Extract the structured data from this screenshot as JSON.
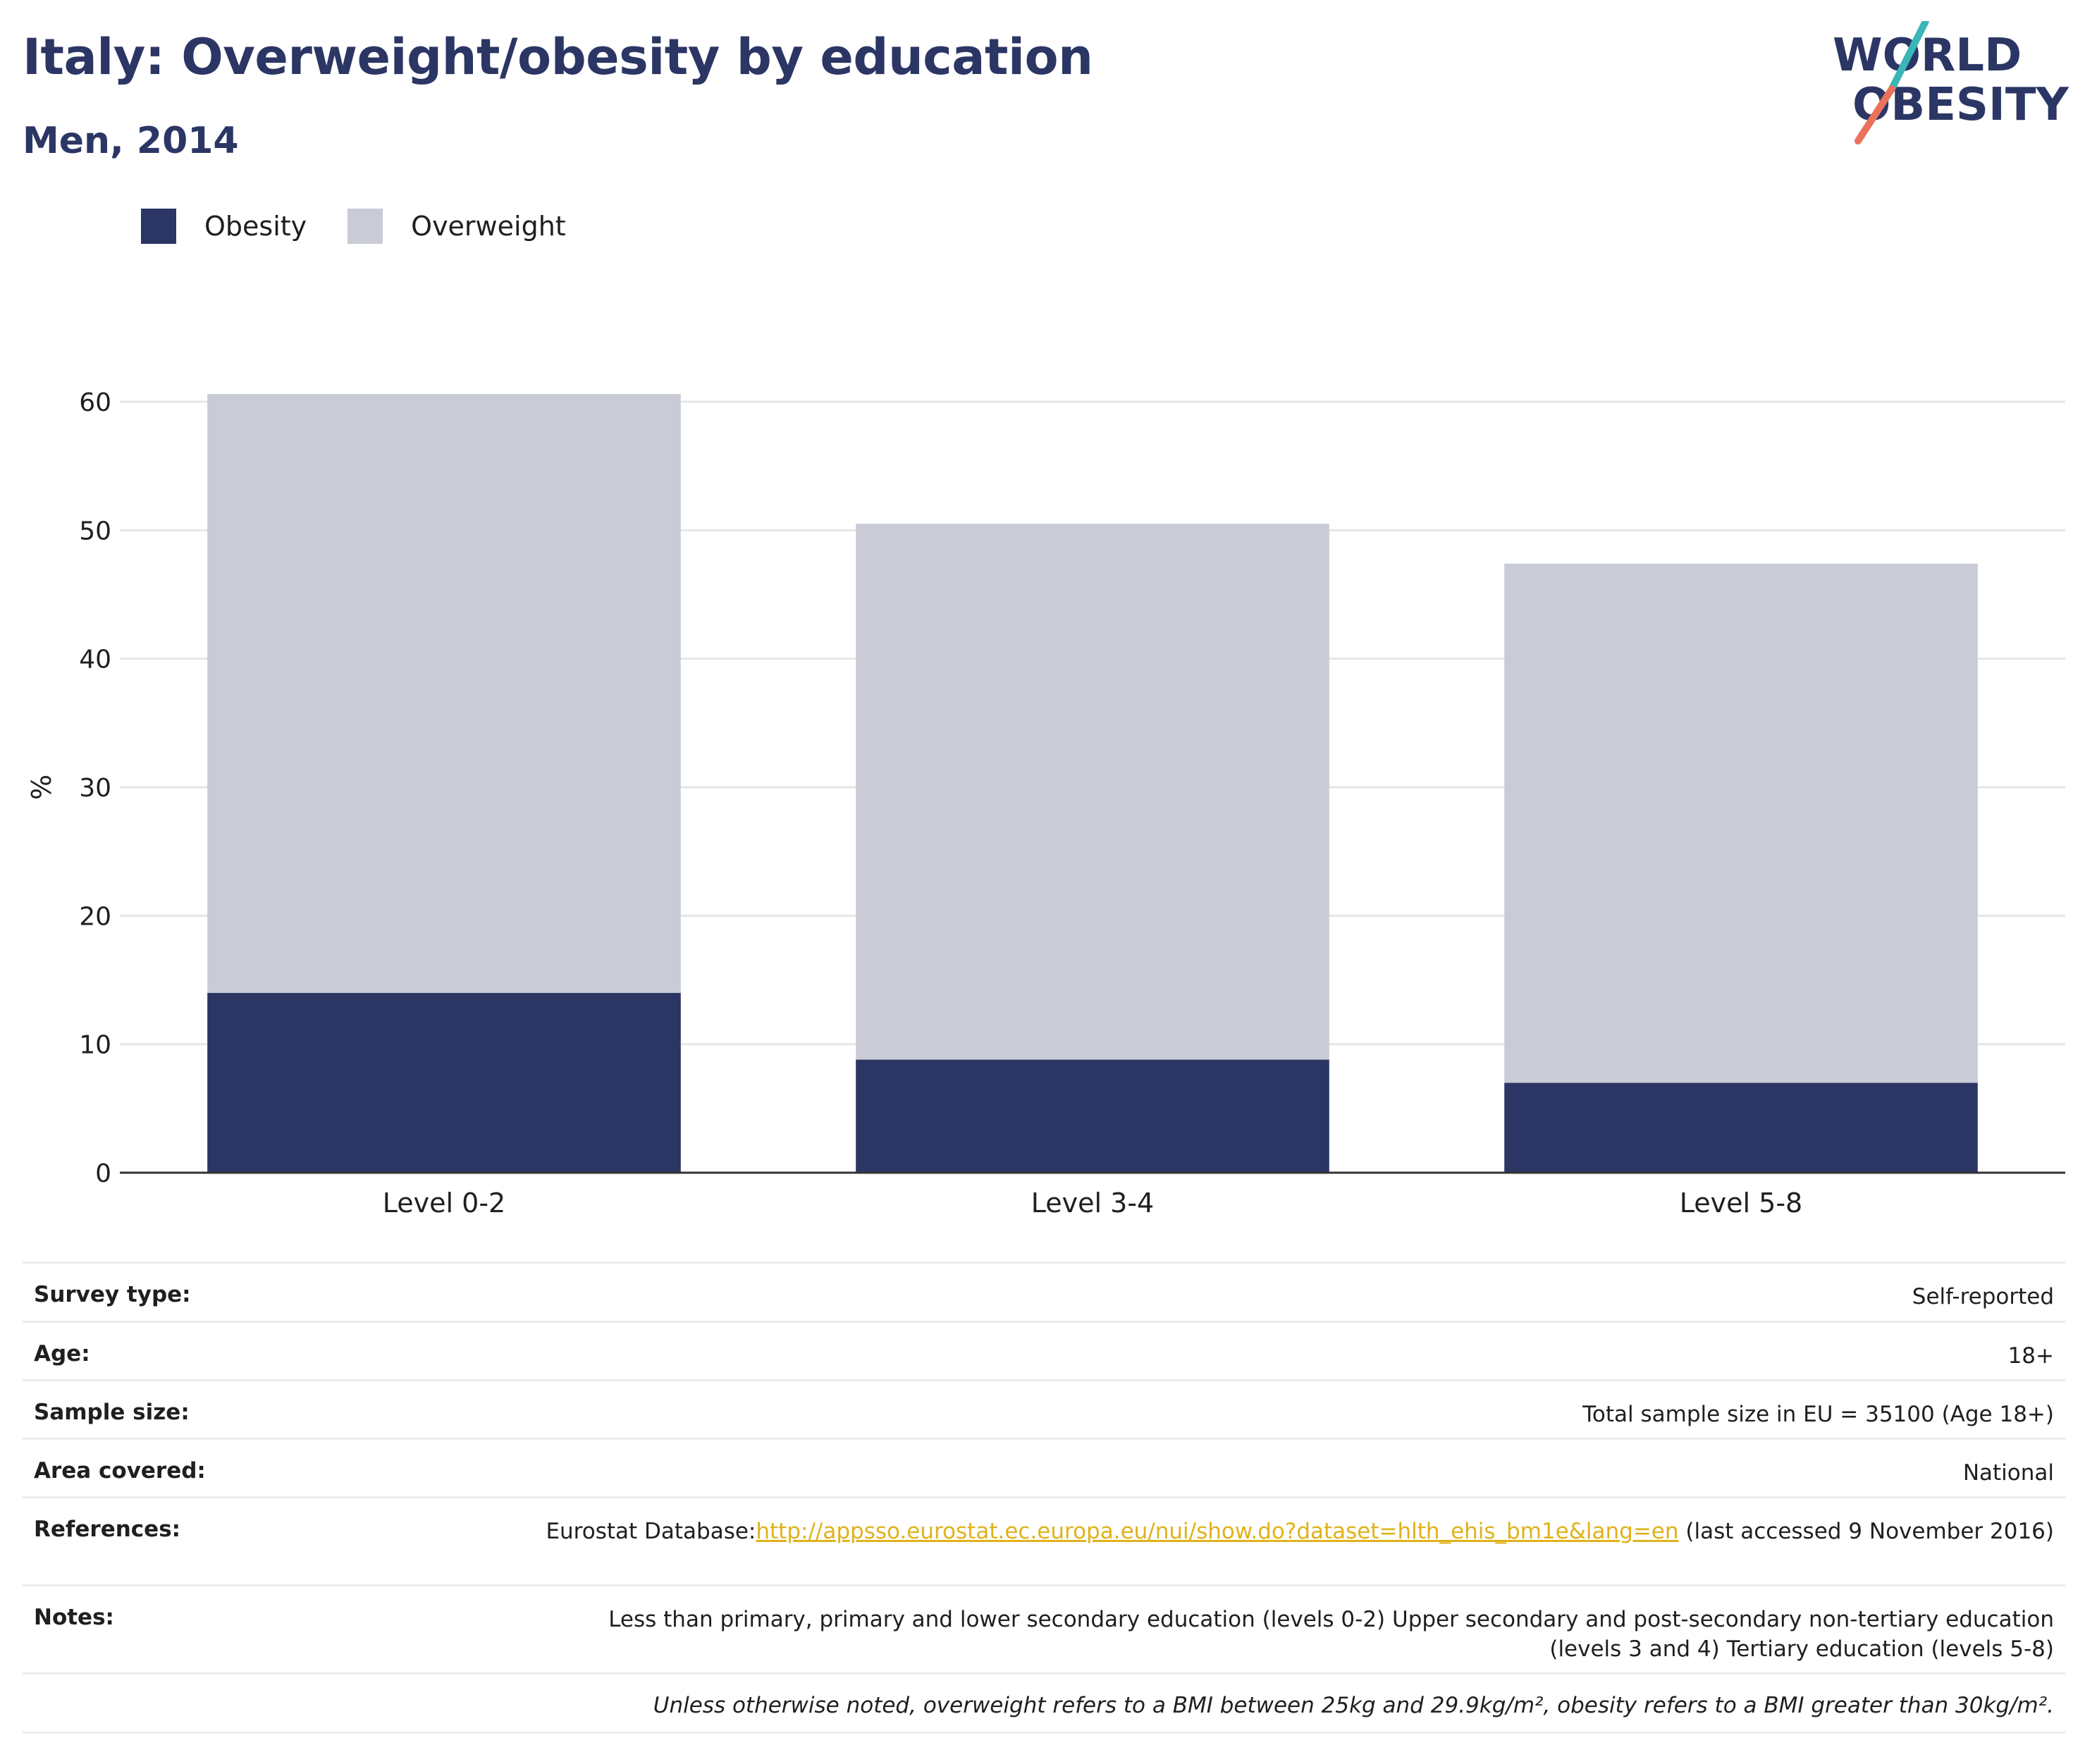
{
  "header": {
    "title": "Italy: Overweight/obesity by education",
    "subtitle": "Men, 2014"
  },
  "logo": {
    "line1": "WORLD",
    "line2": "OBESITY"
  },
  "colors": {
    "obesity": "#2b3664",
    "overweight": "#c9cbd6",
    "grid": "#e6e6e6",
    "axis": "#333333",
    "logo_teal": "#3ab5b8",
    "logo_coral": "#e8735a",
    "link": "#e0b21a"
  },
  "legend": [
    {
      "label": "Obesity",
      "color": "#2b3664"
    },
    {
      "label": "Overweight",
      "color": "#c9cbd6"
    }
  ],
  "chart_data": {
    "type": "bar",
    "stacked": true,
    "categories": [
      "Level 0-2",
      "Level 3-4",
      "Level 5-8"
    ],
    "series": [
      {
        "name": "Obesity",
        "values": [
          14.0,
          8.8,
          7.0
        ]
      },
      {
        "name": "Overweight",
        "values": [
          46.6,
          41.7,
          40.4
        ]
      }
    ],
    "ylabel": "%",
    "ylim": [
      0,
      60
    ],
    "yticks": [
      0,
      10,
      20,
      30,
      40,
      50,
      60
    ],
    "grid": true,
    "legend_position": "top-left"
  },
  "info": {
    "survey_type": {
      "label": "Survey type:",
      "value": "Self-reported"
    },
    "age": {
      "label": "Age:",
      "value": "18+"
    },
    "sample_size": {
      "label": "Sample size:",
      "value": "Total sample size in EU = 35100 (Age 18+)"
    },
    "area_covered": {
      "label": "Area covered:",
      "value": "National"
    },
    "references": {
      "label": "References:",
      "prefix": "Eurostat Database:",
      "link": "http://appsso.eurostat.ec.europa.eu/nui/show.do?dataset=hlth_ehis_bm1e&lang=en",
      "suffix": " (last accessed 9 November 2016)"
    },
    "notes": {
      "label": "Notes:",
      "value": "Less than primary, primary and lower secondary education (levels 0-2) Upper secondary and post-secondary non-tertiary education (levels 3 and 4) Tertiary education (levels 5-8)"
    },
    "footnote": "Unless otherwise noted, overweight refers to a BMI between 25kg and 29.9kg/m², obesity refers to a BMI greater than 30kg/m²."
  }
}
